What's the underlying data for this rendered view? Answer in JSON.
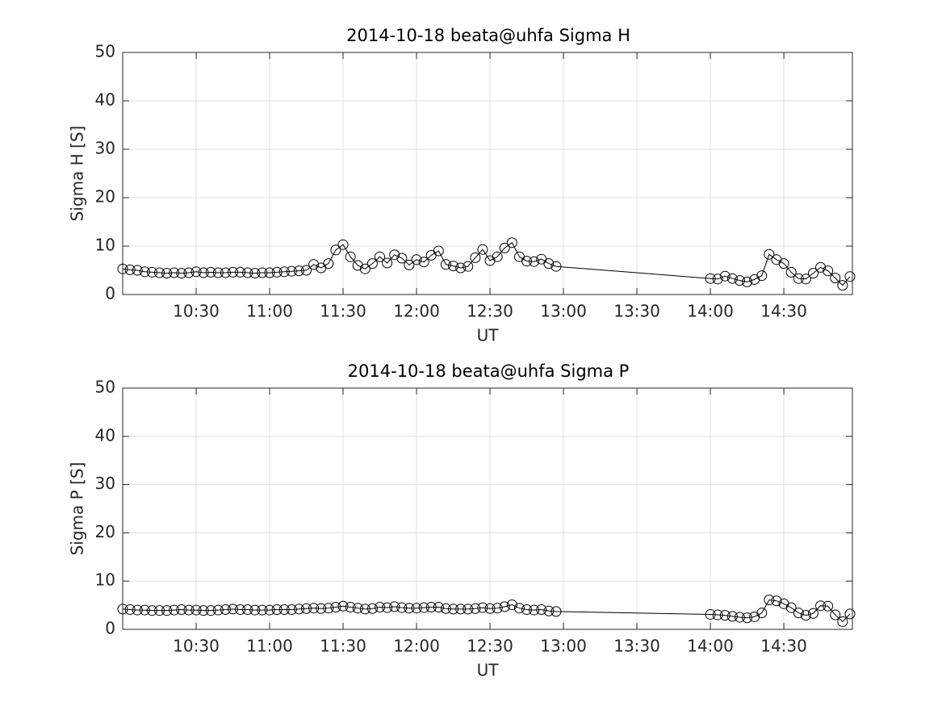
{
  "chart_data": [
    {
      "type": "line",
      "title": "2014-10-18  beata@uhfa Sigma H",
      "xlabel": "UT",
      "ylabel": "Sigma H [S]",
      "x": [
        "10:00",
        "10:03",
        "10:06",
        "10:09",
        "10:12",
        "10:15",
        "10:18",
        "10:21",
        "10:24",
        "10:27",
        "10:30",
        "10:33",
        "10:36",
        "10:39",
        "10:42",
        "10:45",
        "10:48",
        "10:51",
        "10:54",
        "10:57",
        "11:00",
        "11:03",
        "11:06",
        "11:09",
        "11:12",
        "11:15",
        "11:18",
        "11:21",
        "11:24",
        "11:27",
        "11:30",
        "11:33",
        "11:36",
        "11:39",
        "11:42",
        "11:45",
        "11:48",
        "11:51",
        "11:54",
        "11:57",
        "12:00",
        "12:03",
        "12:06",
        "12:09",
        "12:12",
        "12:15",
        "12:18",
        "12:21",
        "12:24",
        "12:27",
        "12:30",
        "12:33",
        "12:36",
        "12:39",
        "12:42",
        "12:45",
        "12:48",
        "12:51",
        "12:54",
        "12:57",
        "14:00",
        "14:03",
        "14:06",
        "14:09",
        "14:12",
        "14:15",
        "14:18",
        "14:21",
        "14:24",
        "14:27",
        "14:30",
        "14:33",
        "14:36",
        "14:39",
        "14:42",
        "14:45",
        "14:48",
        "14:51",
        "14:54",
        "14:57"
      ],
      "series": [
        {
          "color": "#000000",
          "marker": "circle",
          "values": [
            5.3,
            5.1,
            5.0,
            4.7,
            4.6,
            4.5,
            4.4,
            4.5,
            4.4,
            4.5,
            4.7,
            4.5,
            4.6,
            4.5,
            4.5,
            4.6,
            4.6,
            4.5,
            4.4,
            4.5,
            4.5,
            4.6,
            4.7,
            4.8,
            4.9,
            5.0,
            6.2,
            5.5,
            6.4,
            9.2,
            10.3,
            7.8,
            6.0,
            5.3,
            6.4,
            7.8,
            6.5,
            8.2,
            7.5,
            6.1,
            7.2,
            6.7,
            8.1,
            9.0,
            6.2,
            5.9,
            5.5,
            5.8,
            7.6,
            9.3,
            7.0,
            7.8,
            9.6,
            10.7,
            7.8,
            6.9,
            6.8,
            7.3,
            6.4,
            5.8,
            3.3,
            3.2,
            3.8,
            3.3,
            2.9,
            2.6,
            3.1,
            3.9,
            8.3,
            7.2,
            6.4,
            4.6,
            3.3,
            3.2,
            4.4,
            5.6,
            4.9,
            3.4,
            1.9,
            3.7
          ]
        }
      ],
      "xlim": [
        "10:00",
        "14:58"
      ],
      "xticks": [
        "10:30",
        "11:00",
        "11:30",
        "12:00",
        "12:30",
        "13:00",
        "13:30",
        "14:00",
        "14:30"
      ],
      "ylim": [
        0,
        50
      ],
      "yticks": [
        0,
        10,
        20,
        30,
        40,
        50
      ],
      "grid": true
    },
    {
      "type": "line",
      "title": "2014-10-18  beata@uhfa Sigma P",
      "xlabel": "UT",
      "ylabel": "Sigma P [S]",
      "x": [
        "10:00",
        "10:03",
        "10:06",
        "10:09",
        "10:12",
        "10:15",
        "10:18",
        "10:21",
        "10:24",
        "10:27",
        "10:30",
        "10:33",
        "10:36",
        "10:39",
        "10:42",
        "10:45",
        "10:48",
        "10:51",
        "10:54",
        "10:57",
        "11:00",
        "11:03",
        "11:06",
        "11:09",
        "11:12",
        "11:15",
        "11:18",
        "11:21",
        "11:24",
        "11:27",
        "11:30",
        "11:33",
        "11:36",
        "11:39",
        "11:42",
        "11:45",
        "11:48",
        "11:51",
        "11:54",
        "11:57",
        "12:00",
        "12:03",
        "12:06",
        "12:09",
        "12:12",
        "12:15",
        "12:18",
        "12:21",
        "12:24",
        "12:27",
        "12:30",
        "12:33",
        "12:36",
        "12:39",
        "12:42",
        "12:45",
        "12:48",
        "12:51",
        "12:54",
        "12:57",
        "14:00",
        "14:03",
        "14:06",
        "14:09",
        "14:12",
        "14:15",
        "14:18",
        "14:21",
        "14:24",
        "14:27",
        "14:30",
        "14:33",
        "14:36",
        "14:39",
        "14:42",
        "14:45",
        "14:48",
        "14:51",
        "14:54",
        "14:57"
      ],
      "series": [
        {
          "color": "#000000",
          "marker": "circle",
          "values": [
            4.2,
            4.1,
            4.0,
            4.0,
            3.9,
            3.9,
            3.9,
            4.0,
            4.1,
            4.0,
            4.0,
            3.9,
            3.9,
            4.0,
            4.1,
            4.2,
            4.1,
            4.1,
            4.0,
            4.0,
            4.0,
            4.1,
            4.1,
            4.1,
            4.2,
            4.3,
            4.4,
            4.3,
            4.4,
            4.6,
            4.8,
            4.6,
            4.4,
            4.2,
            4.3,
            4.6,
            4.5,
            4.7,
            4.5,
            4.4,
            4.4,
            4.5,
            4.6,
            4.6,
            4.3,
            4.2,
            4.2,
            4.2,
            4.3,
            4.5,
            4.3,
            4.4,
            4.7,
            5.1,
            4.4,
            4.1,
            4.0,
            4.1,
            3.8,
            3.7,
            3.1,
            3.0,
            2.9,
            2.7,
            2.5,
            2.4,
            2.6,
            3.4,
            6.1,
            5.9,
            5.3,
            4.5,
            3.4,
            2.9,
            3.3,
            4.9,
            4.8,
            3.0,
            1.6,
            3.2
          ]
        }
      ],
      "xlim": [
        "10:00",
        "14:58"
      ],
      "xticks": [
        "10:30",
        "11:00",
        "11:30",
        "12:00",
        "12:30",
        "13:00",
        "13:30",
        "14:00",
        "14:30"
      ],
      "ylim": [
        0,
        50
      ],
      "yticks": [
        0,
        10,
        20,
        30,
        40,
        50
      ],
      "grid": true
    }
  ]
}
